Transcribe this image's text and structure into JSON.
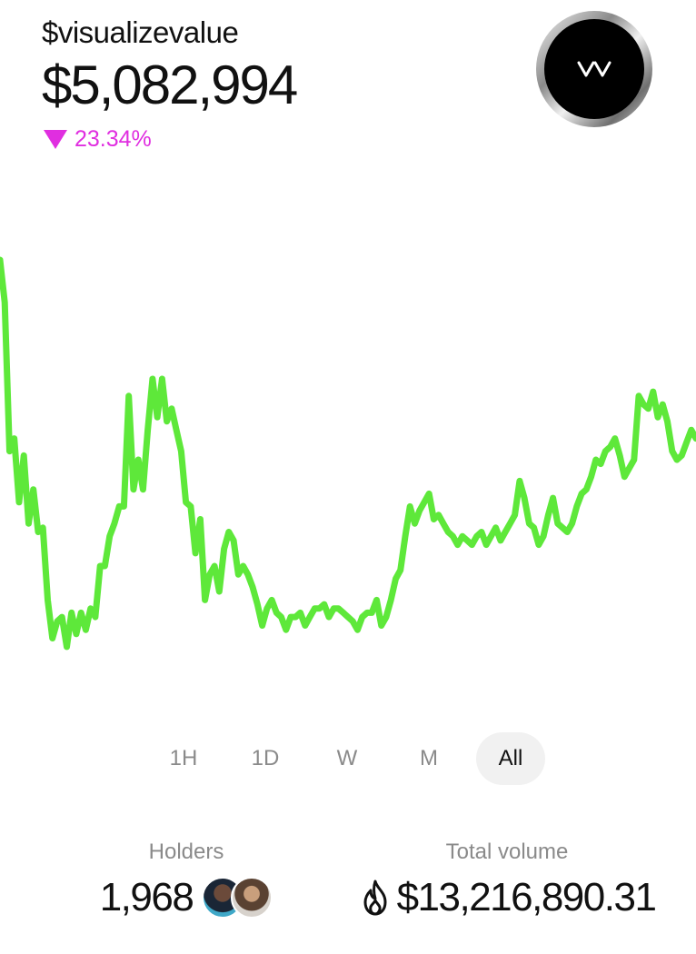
{
  "token": {
    "ticker": "$visualizevalue",
    "price": "$5,082,994",
    "change": "23.34%",
    "change_direction": "down",
    "change_color": "#e02ee0",
    "logo_text": "VV"
  },
  "chart_data": {
    "type": "line",
    "color": "#5ee83a",
    "title": "",
    "xlabel": "",
    "ylabel": "",
    "grid": false,
    "ylim": [
      0,
      100
    ],
    "y": [
      100,
      90,
      55,
      58,
      43,
      54,
      38,
      46,
      36,
      37,
      20,
      11,
      15,
      16,
      9,
      17,
      12,
      17,
      13,
      18,
      16,
      28,
      28,
      35,
      38,
      42,
      42,
      68,
      46,
      53,
      46,
      60,
      72,
      63,
      72,
      62,
      65,
      60,
      55,
      43,
      42,
      31,
      39,
      20,
      26,
      28,
      22,
      32,
      36,
      34,
      26,
      28,
      26,
      23,
      19,
      14,
      18,
      20,
      17,
      16,
      13,
      16,
      16,
      17,
      14,
      16,
      18,
      18,
      19,
      16,
      18,
      18,
      17,
      16,
      15,
      13,
      16,
      17,
      17,
      20,
      14,
      16,
      20,
      25,
      27,
      35,
      42,
      38,
      41,
      43,
      45,
      39,
      40,
      38,
      36,
      35,
      33,
      35,
      34,
      33,
      35,
      36,
      33,
      35,
      37,
      34,
      36,
      38,
      40,
      48,
      44,
      38,
      37,
      33,
      35,
      40,
      44,
      38,
      37,
      36,
      38,
      42,
      45,
      46,
      49,
      53,
      52,
      55,
      56,
      58,
      54,
      49,
      51,
      53,
      68,
      66,
      65,
      69,
      63,
      66,
      62,
      55,
      53,
      54,
      57,
      60,
      58
    ]
  },
  "timeframes": [
    {
      "label": "1H",
      "active": false
    },
    {
      "label": "1D",
      "active": false
    },
    {
      "label": "W",
      "active": false
    },
    {
      "label": "M",
      "active": false
    },
    {
      "label": "All",
      "active": true
    }
  ],
  "stats": {
    "holders": {
      "label": "Holders",
      "value": "1,968"
    },
    "volume": {
      "label": "Total volume",
      "value": "$13,216,890.31",
      "icon": "flame-icon"
    }
  }
}
